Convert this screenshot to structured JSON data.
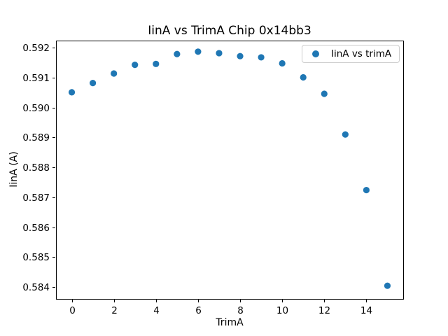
{
  "figure": {
    "background": "#ffffff",
    "axes_edge_color": "#000000"
  },
  "chart_data": {
    "type": "scatter",
    "title": "IinA vs TrimA Chip 0x14bb3",
    "xlabel": "TrimA",
    "ylabel": "IinA (A)",
    "legend": {
      "label": "IinA vs trimA",
      "position": "upper right",
      "marker": "dot-icon"
    },
    "series": [
      {
        "name": "IinA vs trimA",
        "marker_color": "#1f77b4",
        "x": [
          0,
          1,
          2,
          3,
          4,
          5,
          6,
          7,
          8,
          9,
          10,
          11,
          12,
          13,
          14,
          15
        ],
        "y": [
          0.59051,
          0.59082,
          0.59114,
          0.59143,
          0.59146,
          0.59179,
          0.59187,
          0.59182,
          0.59172,
          0.59168,
          0.59148,
          0.59101,
          0.59046,
          0.5891,
          0.58724,
          0.58404
        ]
      }
    ],
    "xlim": [
      -0.75,
      15.75
    ],
    "ylim": [
      0.5836,
      0.59224
    ],
    "xticks": [
      0,
      2,
      4,
      6,
      8,
      10,
      12,
      14
    ],
    "yticks": [
      0.584,
      0.585,
      0.586,
      0.587,
      0.588,
      0.589,
      0.59,
      0.591,
      0.592
    ],
    "ytick_decimals": 3,
    "grid": false
  }
}
